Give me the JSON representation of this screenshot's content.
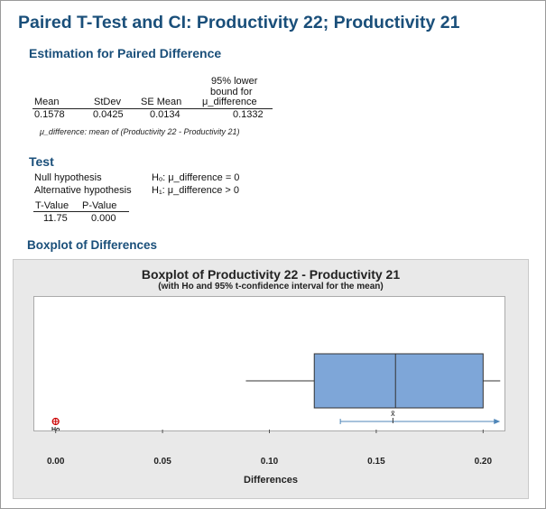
{
  "title": "Paired T-Test and CI: Productivity 22; Productivity 21",
  "estimation": {
    "heading": "Estimation for Paired Difference",
    "columns": [
      "Mean",
      "StDev",
      "SE Mean",
      "95% lower",
      "bound for",
      "μ_difference"
    ],
    "values": [
      "0.1578",
      "0.0425",
      "0.0134",
      "0.1332"
    ],
    "note": "μ_difference: mean of (Productivity 22 - Productivity 21)"
  },
  "test": {
    "heading": "Test",
    "null_label": "Null hypothesis",
    "null_value": "Hₒ: μ_difference = 0",
    "alt_label": "Alternative hypothesis",
    "alt_value": "H₁: μ_difference > 0",
    "columns": [
      "T-Value",
      "P-Value"
    ],
    "values": [
      "11.75",
      "0.000"
    ]
  },
  "boxplot_heading": "Boxplot of Differences",
  "chart_data": {
    "type": "boxplot",
    "title": "Boxplot of Productivity 22 - Productivity 21",
    "subtitle": "(with Ho and 95% t-confidence interval for the mean)",
    "xlabel": "Differences",
    "ylabel": "",
    "xlim": [
      -0.01,
      0.21
    ],
    "xticks": [
      "0.00",
      "0.05",
      "0.10",
      "0.15",
      "0.20"
    ],
    "tick_values": [
      0,
      0.05,
      0.1,
      0.15,
      0.2
    ],
    "box": {
      "whisker_low": 0.089,
      "q1": 0.121,
      "median": 0.159,
      "q3": 0.2,
      "whisker_high": 0.208
    },
    "mean": 0.1578,
    "mean_label": "x̄",
    "ci": {
      "lower": 0.1332,
      "upper": 0.208
    },
    "ho": {
      "value": 0,
      "label": "Ho"
    },
    "colors": {
      "box_fill": "#7ea6d8",
      "box_stroke": "#333333",
      "ci": "#4f86b8",
      "ho": "#cc0000"
    }
  }
}
